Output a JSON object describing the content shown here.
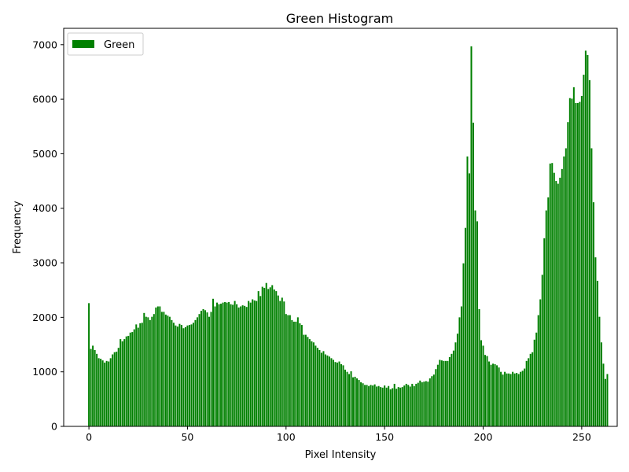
{
  "chart_data": {
    "type": "bar",
    "title": "Green Histogram",
    "xlabel": "Pixel Intensity",
    "ylabel": "Frequency",
    "xlim": [
      -12.8,
      268
    ],
    "ylim": [
      0,
      7300
    ],
    "xticks": [
      0,
      50,
      100,
      150,
      200,
      250
    ],
    "yticks": [
      0,
      1000,
      2000,
      3000,
      4000,
      5000,
      6000,
      7000
    ],
    "grid": false,
    "legend_position": "top-left",
    "series": [
      {
        "name": "Green",
        "color": "#008000",
        "x_start": 0,
        "values": [
          2260,
          1420,
          1480,
          1400,
          1330,
          1250,
          1240,
          1210,
          1170,
          1200,
          1190,
          1250,
          1320,
          1360,
          1370,
          1440,
          1600,
          1560,
          1600,
          1650,
          1660,
          1720,
          1730,
          1780,
          1870,
          1810,
          1890,
          1900,
          2080,
          2010,
          2000,
          1950,
          2010,
          2060,
          2180,
          2200,
          2200,
          2100,
          2100,
          2050,
          2030,
          2010,
          1950,
          1900,
          1850,
          1830,
          1880,
          1860,
          1800,
          1820,
          1850,
          1860,
          1870,
          1900,
          1950,
          2000,
          2060,
          2120,
          2150,
          2130,
          2090,
          2010,
          2100,
          2340,
          2200,
          2270,
          2240,
          2250,
          2270,
          2280,
          2270,
          2280,
          2240,
          2230,
          2300,
          2240,
          2180,
          2200,
          2220,
          2210,
          2190,
          2300,
          2270,
          2330,
          2310,
          2300,
          2480,
          2390,
          2560,
          2540,
          2630,
          2520,
          2550,
          2590,
          2510,
          2480,
          2400,
          2300,
          2360,
          2290,
          2060,
          2040,
          2040,
          1950,
          1920,
          1920,
          2000,
          1890,
          1860,
          1680,
          1680,
          1640,
          1600,
          1560,
          1540,
          1480,
          1440,
          1400,
          1350,
          1380,
          1320,
          1300,
          1280,
          1250,
          1220,
          1180,
          1170,
          1190,
          1140,
          1120,
          1040,
          1000,
          960,
          1010,
          900,
          910,
          880,
          850,
          810,
          790,
          760,
          760,
          740,
          760,
          750,
          770,
          730,
          740,
          720,
          710,
          750,
          710,
          740,
          680,
          700,
          780,
          690,
          720,
          710,
          720,
          750,
          780,
          760,
          730,
          780,
          740,
          780,
          800,
          840,
          810,
          820,
          830,
          820,
          880,
          920,
          950,
          1050,
          1130,
          1220,
          1210,
          1200,
          1200,
          1200,
          1270,
          1330,
          1390,
          1540,
          1700,
          2000,
          2200,
          2990,
          3640,
          4950,
          4640,
          6970,
          5570,
          3960,
          3760,
          2150,
          1580,
          1480,
          1310,
          1290,
          1190,
          1130,
          1150,
          1140,
          1120,
          1080,
          1000,
          950,
          1000,
          970,
          970,
          960,
          1000,
          970,
          980,
          960,
          1000,
          1020,
          1060,
          1200,
          1250,
          1330,
          1360,
          1590,
          1720,
          2040,
          2330,
          2780,
          3450,
          3960,
          4200,
          4820,
          4830,
          4650,
          4500,
          4450,
          4560,
          4720,
          4950,
          5100,
          5580,
          6020,
          6010,
          6220,
          5930,
          5930,
          5950,
          6060,
          6450,
          6890,
          6810,
          6350,
          5100,
          4110,
          3100,
          2670,
          2010,
          1540,
          1150,
          870,
          960
        ]
      }
    ]
  }
}
